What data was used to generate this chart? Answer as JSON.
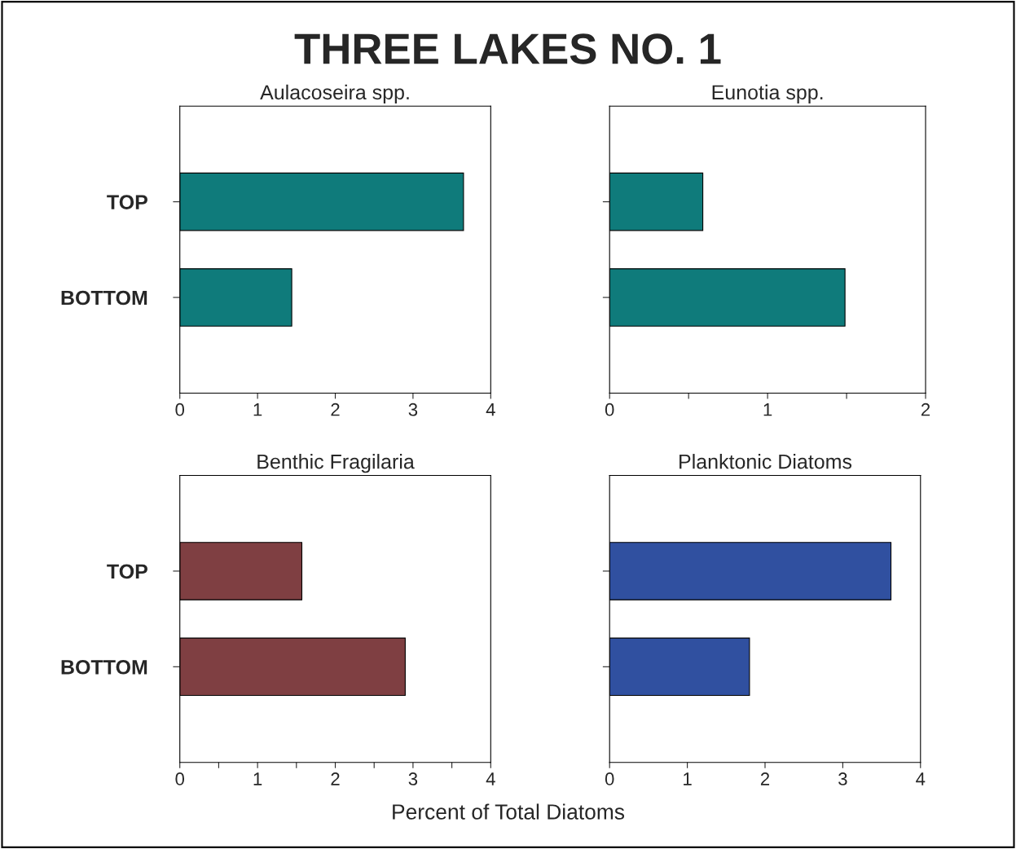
{
  "chart_data": [
    {
      "type": "bar",
      "orientation": "horizontal",
      "title": "Aulacoseira spp.",
      "annotations": [
        "THREE LAKES NO. 1"
      ],
      "categories": [
        "TOP",
        "BOTTOM"
      ],
      "values": [
        3.65,
        1.44
      ],
      "color": "#0f7b7b",
      "xlim": [
        0,
        4
      ],
      "xticks": [
        0,
        1,
        2,
        3,
        4
      ],
      "grid": false,
      "legend": false
    },
    {
      "type": "bar",
      "orientation": "horizontal",
      "title": "Eunotia spp.",
      "categories": [
        null,
        null
      ],
      "values": [
        0.59,
        1.49
      ],
      "color": "#0f7b7b",
      "xlim": [
        0,
        2
      ],
      "xticks": [
        0,
        {
          "value": 0.5,
          "label": null
        },
        1,
        {
          "value": 1.5,
          "label": null
        },
        2
      ],
      "tick_labels": "x",
      "grid": false,
      "legend": false
    },
    {
      "type": "bar",
      "orientation": "horizontal",
      "title": "Benthic Fragilaria",
      "categories": [
        "TOP",
        "BOTTOM"
      ],
      "values": [
        1.57,
        2.9
      ],
      "color": "#7f3f42",
      "xlim": [
        0,
        4
      ],
      "xticks": [
        0,
        {
          "value": 0.5,
          "label": null
        },
        1,
        {
          "value": 1.5,
          "label": null
        },
        2,
        {
          "value": 2.5,
          "label": null
        },
        3,
        {
          "value": 3.5,
          "label": null
        },
        4
      ],
      "grid": false,
      "legend": false
    },
    {
      "type": "bar",
      "orientation": "horizontal",
      "title": "Planktonic Diatoms",
      "xlabel": "Percent of Total Diatoms",
      "categories": [
        null,
        null
      ],
      "values": [
        3.62,
        1.8
      ],
      "color": "#3050a0",
      "xlim": [
        0,
        4
      ],
      "xticks": [
        0,
        1,
        2,
        3,
        4
      ],
      "tick_labels": "x",
      "grid": false,
      "legend": false
    }
  ]
}
